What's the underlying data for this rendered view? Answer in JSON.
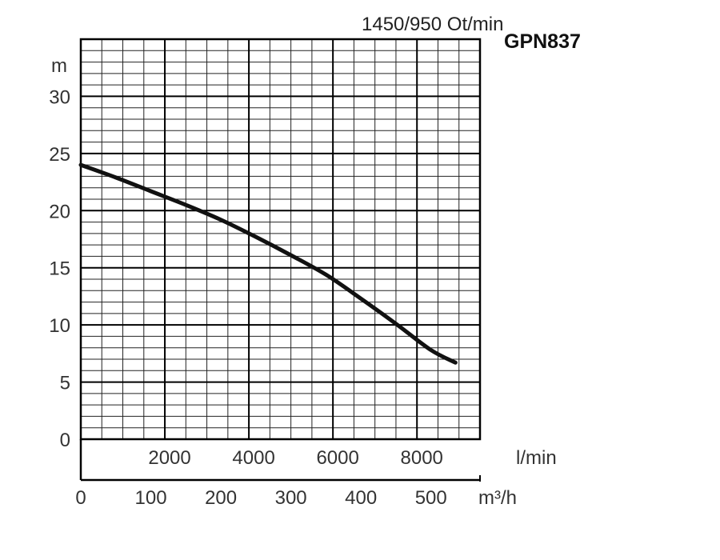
{
  "chart_data": {
    "type": "line",
    "title": "1450/950 Ot/min",
    "subtitle": "GPN837",
    "ylabel": "m",
    "x_primary_label": "l/min",
    "x_secondary_label": "m³/h",
    "ylim": [
      0,
      35
    ],
    "xlim_lpm": [
      0,
      9500
    ],
    "xlim_m3h": [
      0,
      570
    ],
    "y_ticks": [
      "0",
      "5",
      "10",
      "15",
      "20",
      "25",
      "30"
    ],
    "x_primary_ticks": [
      "2000",
      "4000",
      "6000",
      "8000"
    ],
    "x_secondary_ticks": [
      "0",
      "100",
      "200",
      "300",
      "400",
      "500"
    ],
    "grid": true,
    "series": [
      {
        "x_m3h": [
          0,
          50,
          100,
          150,
          200,
          250,
          300,
          350,
          400,
          450,
          500,
          535
        ],
        "y_m": [
          24.0,
          22.9,
          21.7,
          20.5,
          19.2,
          17.7,
          16.1,
          14.4,
          12.3,
          10.1,
          7.8,
          6.7
        ]
      }
    ]
  }
}
